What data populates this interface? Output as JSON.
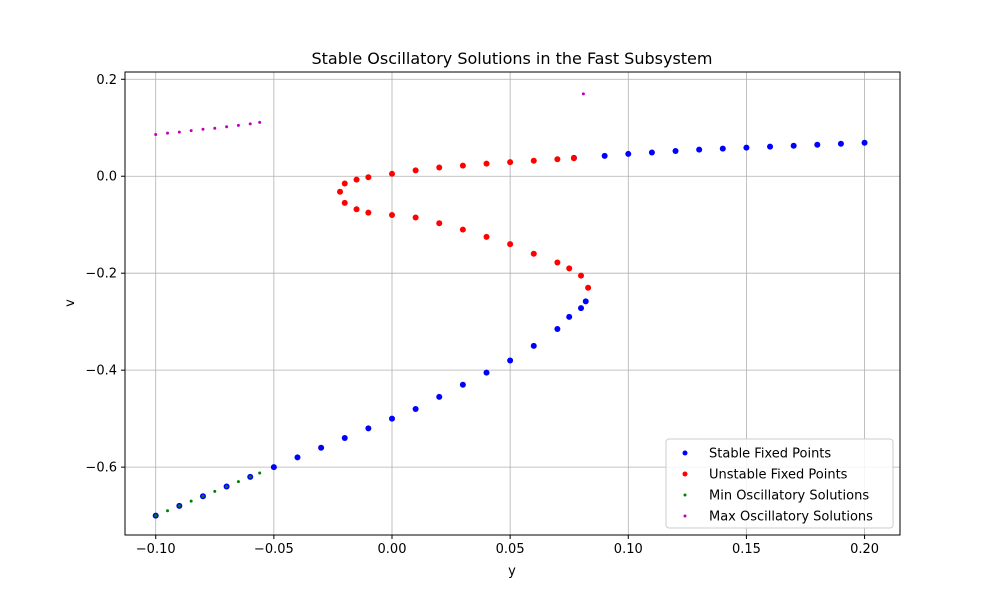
{
  "chart_data": {
    "type": "scatter",
    "title": "Stable Oscillatory Solutions in the Fast Subsystem",
    "xlabel": "y",
    "ylabel": "v",
    "xlim": [
      -0.113,
      0.215
    ],
    "ylim": [
      -0.74,
      0.215
    ],
    "grid": true,
    "legend_position": "bottom-right",
    "xticks": [
      {
        "value": -0.1,
        "label": "−0.10"
      },
      {
        "value": -0.05,
        "label": "−0.05"
      },
      {
        "value": 0.0,
        "label": "0.00"
      },
      {
        "value": 0.05,
        "label": "0.05"
      },
      {
        "value": 0.1,
        "label": "0.10"
      },
      {
        "value": 0.15,
        "label": "0.15"
      },
      {
        "value": 0.2,
        "label": "0.20"
      }
    ],
    "yticks": [
      {
        "value": 0.2,
        "label": "0.2"
      },
      {
        "value": 0.0,
        "label": "0.0"
      },
      {
        "value": -0.2,
        "label": "−0.2"
      },
      {
        "value": -0.4,
        "label": "−0.4"
      },
      {
        "value": -0.6,
        "label": "−0.6"
      }
    ],
    "series": [
      {
        "name": "Stable Fixed Points",
        "color": "#0000ff",
        "marker_size": 3,
        "x": [
          -0.1,
          -0.09,
          -0.08,
          -0.07,
          -0.06,
          -0.05,
          -0.04,
          -0.03,
          -0.02,
          -0.01,
          0.0,
          0.01,
          0.02,
          0.03,
          0.04,
          0.05,
          0.06,
          0.07,
          0.075,
          0.08,
          0.082,
          0.077,
          0.09,
          0.1,
          0.11,
          0.12,
          0.13,
          0.14,
          0.15,
          0.16,
          0.17,
          0.18,
          0.19,
          0.2
        ],
        "y": [
          -0.7,
          -0.68,
          -0.66,
          -0.64,
          -0.62,
          -0.6,
          -0.58,
          -0.56,
          -0.54,
          -0.52,
          -0.5,
          -0.48,
          -0.455,
          -0.43,
          -0.405,
          -0.38,
          -0.35,
          -0.315,
          -0.29,
          -0.272,
          -0.258,
          0.038,
          0.042,
          0.046,
          0.049,
          0.052,
          0.055,
          0.057,
          0.059,
          0.061,
          0.063,
          0.065,
          0.067,
          0.069
        ]
      },
      {
        "name": "Unstable Fixed Points",
        "color": "#ff0000",
        "marker_size": 3,
        "x": [
          0.083,
          0.08,
          0.075,
          0.07,
          0.06,
          0.05,
          0.04,
          0.03,
          0.02,
          0.01,
          0.0,
          -0.01,
          -0.015,
          -0.02,
          -0.022,
          -0.02,
          -0.015,
          -0.01,
          0.0,
          0.01,
          0.02,
          0.03,
          0.04,
          0.05,
          0.06,
          0.07,
          0.077
        ],
        "y": [
          -0.23,
          -0.205,
          -0.19,
          -0.178,
          -0.16,
          -0.14,
          -0.125,
          -0.11,
          -0.097,
          -0.085,
          -0.08,
          -0.075,
          -0.068,
          -0.055,
          -0.032,
          -0.015,
          -0.007,
          -0.002,
          0.005,
          0.012,
          0.018,
          0.022,
          0.026,
          0.029,
          0.032,
          0.035,
          0.037
        ]
      },
      {
        "name": "Min Oscillatory Solutions",
        "color": "#008000",
        "marker_size": 1.5,
        "x": [
          -0.1,
          -0.095,
          -0.09,
          -0.085,
          -0.08,
          -0.075,
          -0.07,
          -0.065,
          -0.06,
          -0.056
        ],
        "y": [
          -0.7,
          -0.69,
          -0.68,
          -0.67,
          -0.66,
          -0.65,
          -0.64,
          -0.63,
          -0.62,
          -0.612
        ]
      },
      {
        "name": "Max Oscillatory Solutions",
        "color": "#bf00bf",
        "marker_size": 1.5,
        "x": [
          -0.1,
          -0.095,
          -0.09,
          -0.085,
          -0.08,
          -0.075,
          -0.07,
          -0.065,
          -0.06,
          -0.056,
          0.081
        ],
        "y": [
          0.086,
          0.089,
          0.091,
          0.094,
          0.097,
          0.099,
          0.102,
          0.105,
          0.108,
          0.111,
          0.17
        ]
      }
    ]
  }
}
